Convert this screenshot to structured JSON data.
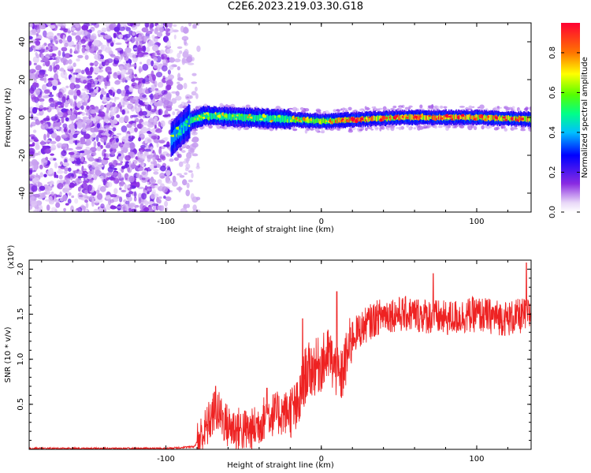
{
  "title": "C2E6.2023.219.03.30.G18",
  "colors": {
    "line": "#ee2222",
    "colormap_stops": [
      "#ffffff",
      "#8a2be2",
      "#0000ff",
      "#00bfff",
      "#00ff66",
      "#ffff00",
      "#ff0000"
    ]
  },
  "chart_data": [
    {
      "type": "heatmap",
      "title": "C2E6.2023.219.03.30.G18",
      "xlabel": "Height of straight line (km)",
      "ylabel": "Frequency (Hz)",
      "xlim": [
        -188,
        135
      ],
      "ylim": [
        -50,
        50
      ],
      "x_ticks": [
        -100,
        0,
        100
      ],
      "y_ticks": [
        -40,
        -20,
        0,
        20,
        40
      ],
      "colorbar": {
        "label": "Normalized spectral amplitude",
        "range": [
          0.0,
          0.95
        ],
        "ticks": [
          "0.0",
          "0.2",
          "0.4",
          "0.6",
          "0.8"
        ]
      },
      "description_points": {
        "noise_region_x": [
          -188,
          -97
        ],
        "signal_onset_x": -97,
        "signal_band_center_hz": [
          {
            "x": -95,
            "y": -10
          },
          {
            "x": -85,
            "y": -2
          },
          {
            "x": -75,
            "y": 1
          },
          {
            "x": -50,
            "y": 0
          },
          {
            "x": -20,
            "y": -1
          },
          {
            "x": 0,
            "y": -2
          },
          {
            "x": 50,
            "y": 0
          },
          {
            "x": 100,
            "y": 0
          },
          {
            "x": 135,
            "y": -1
          }
        ]
      }
    },
    {
      "type": "line",
      "xlabel": "Height of straight line (km)",
      "ylabel": "SNR (10 * v/v)",
      "y_multiplier": "(x10⁴)",
      "xlim": [
        -188,
        135
      ],
      "ylim": [
        0,
        2.1
      ],
      "x_ticks": [
        -100,
        0,
        100
      ],
      "y_ticks": [
        "0.5",
        "1.0",
        "1.5",
        "2.0"
      ],
      "series_envelope": [
        {
          "x": -188,
          "y": 0.01
        },
        {
          "x": -100,
          "y": 0.01
        },
        {
          "x": -82,
          "y": 0.03
        },
        {
          "x": -75,
          "y": 0.2
        },
        {
          "x": -68,
          "y": 0.45
        },
        {
          "x": -60,
          "y": 0.25
        },
        {
          "x": -45,
          "y": 0.2
        },
        {
          "x": -35,
          "y": 0.38
        },
        {
          "x": -25,
          "y": 0.4
        },
        {
          "x": -15,
          "y": 0.45
        },
        {
          "x": -10,
          "y": 0.85
        },
        {
          "x": -5,
          "y": 0.9
        },
        {
          "x": 0,
          "y": 0.95
        },
        {
          "x": 5,
          "y": 1.05
        },
        {
          "x": 12,
          "y": 0.75
        },
        {
          "x": 20,
          "y": 1.25
        },
        {
          "x": 30,
          "y": 1.4
        },
        {
          "x": 40,
          "y": 1.5
        },
        {
          "x": 60,
          "y": 1.5
        },
        {
          "x": 80,
          "y": 1.45
        },
        {
          "x": 100,
          "y": 1.5
        },
        {
          "x": 120,
          "y": 1.45
        },
        {
          "x": 135,
          "y": 1.5
        }
      ],
      "notable_peaks": [
        {
          "x": -68,
          "y": 0.7
        },
        {
          "x": -35,
          "y": 0.68
        },
        {
          "x": -12,
          "y": 1.45
        },
        {
          "x": 10,
          "y": 1.75
        },
        {
          "x": 72,
          "y": 1.95
        },
        {
          "x": 132,
          "y": 2.07
        }
      ]
    }
  ]
}
